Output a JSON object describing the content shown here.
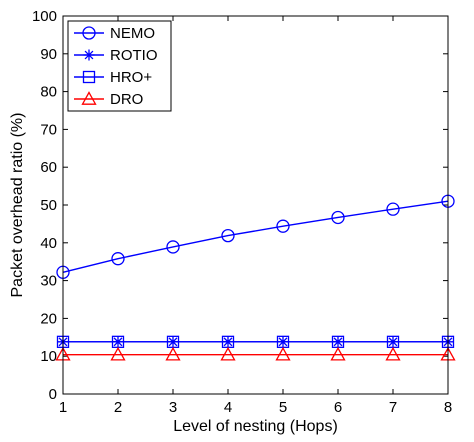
{
  "chart_data": {
    "type": "line",
    "title": "",
    "xlabel": "Level of nesting (Hops)",
    "ylabel": "Packet overhead ratio (%)",
    "xlim": [
      1,
      8
    ],
    "ylim": [
      0,
      100
    ],
    "xticks": [
      "1",
      "2",
      "3",
      "4",
      "5",
      "6",
      "7",
      "8"
    ],
    "yticks": [
      "0",
      "10",
      "20",
      "30",
      "40",
      "50",
      "60",
      "70",
      "80",
      "90",
      "100"
    ],
    "grid": false,
    "legend_position": "top-left",
    "x": [
      1,
      2,
      3,
      4,
      5,
      6,
      7,
      8
    ],
    "series": [
      {
        "name": "NEMO",
        "values": [
          32.2,
          35.8,
          38.9,
          41.9,
          44.4,
          46.7,
          48.9,
          51.0
        ],
        "color": "#0000ff",
        "marker": "circle"
      },
      {
        "name": "ROTIO",
        "values": [
          13.8,
          13.8,
          13.8,
          13.8,
          13.8,
          13.8,
          13.8,
          13.8
        ],
        "color": "#0000ff",
        "marker": "asterisk"
      },
      {
        "name": "HRO+",
        "values": [
          13.8,
          13.8,
          13.8,
          13.8,
          13.8,
          13.8,
          13.8,
          13.8
        ],
        "color": "#0000ff",
        "marker": "square"
      },
      {
        "name": "DRO",
        "values": [
          10.4,
          10.4,
          10.4,
          10.4,
          10.4,
          10.4,
          10.4,
          10.4
        ],
        "color": "#ff0000",
        "marker": "triangle"
      }
    ]
  }
}
